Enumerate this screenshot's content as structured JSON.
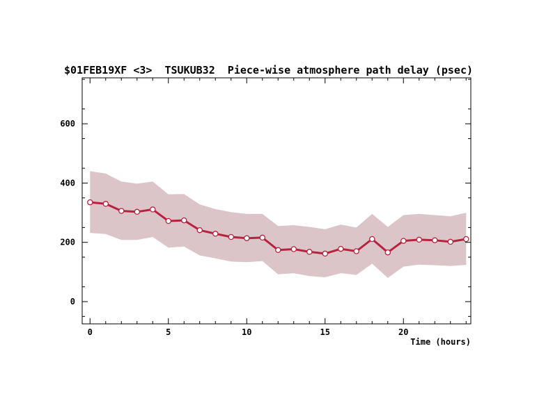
{
  "chart_data": {
    "type": "line",
    "title": "$01FEB19XF <3>  TSUKUB32  Piece-wise atmosphere path delay (psec)",
    "xlabel": "Time (hours)",
    "ylabel": "",
    "xlim": [
      -0.5,
      24.3
    ],
    "ylim": [
      -75,
      755
    ],
    "xticks": [
      0,
      5,
      10,
      15,
      20
    ],
    "yticks": [
      0,
      200,
      400,
      600
    ],
    "x": [
      0,
      1,
      2,
      3,
      4,
      5,
      6,
      7,
      8,
      9,
      10,
      11,
      12,
      13,
      14,
      15,
      16,
      17,
      18,
      19,
      20,
      21,
      22,
      23,
      24
    ],
    "series": [
      {
        "values": [
          335,
          330,
          306,
          303,
          311,
          272,
          274,
          241,
          229,
          218,
          214,
          216,
          174,
          177,
          168,
          162,
          178,
          170,
          211,
          166,
          205,
          209,
          207,
          202,
          211
        ],
        "upper": [
          440,
          432,
          405,
          398,
          405,
          362,
          363,
          328,
          312,
          302,
          296,
          296,
          255,
          258,
          252,
          244,
          260,
          250,
          296,
          252,
          292,
          296,
          292,
          288,
          300
        ],
        "lower": [
          232,
          228,
          208,
          208,
          218,
          182,
          186,
          156,
          146,
          135,
          133,
          137,
          92,
          96,
          86,
          82,
          96,
          90,
          128,
          80,
          118,
          125,
          123,
          120,
          124
        ]
      }
    ],
    "colors": {
      "line": "#b5233f",
      "marker_fill": "#ffffff",
      "band": "#dcc5c8"
    },
    "grid": false
  }
}
